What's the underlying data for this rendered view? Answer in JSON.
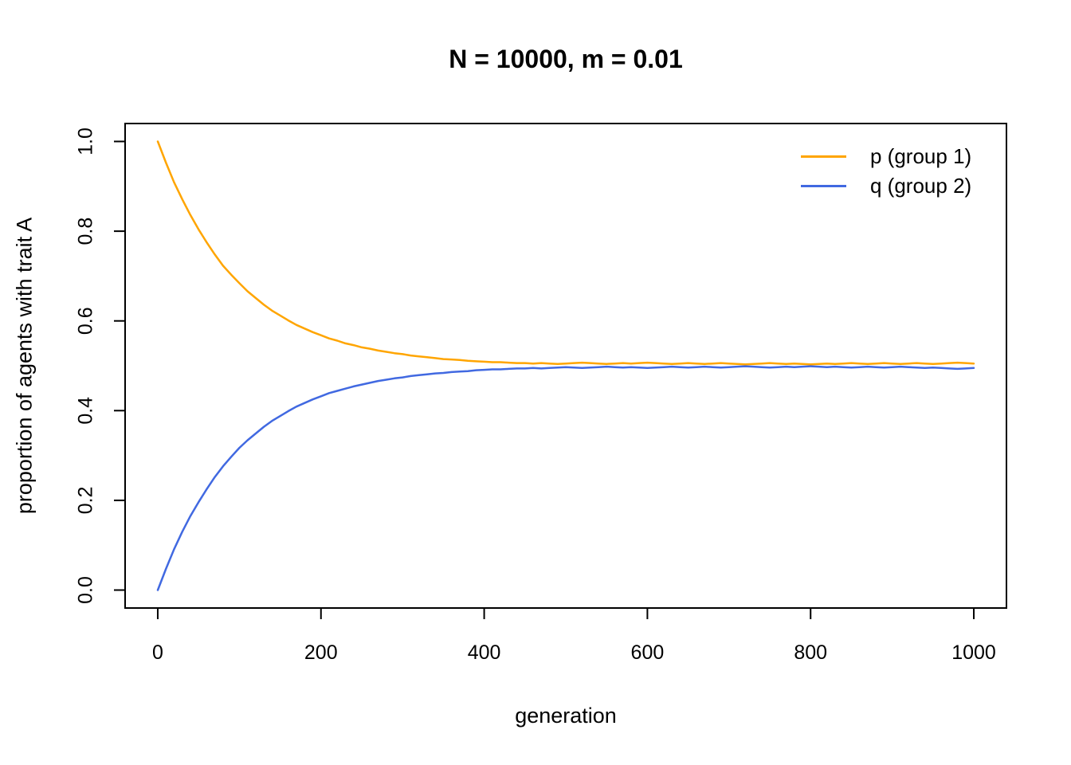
{
  "chart_data": {
    "type": "line",
    "title": "N = 10000, m = 0.01",
    "xlabel": "generation",
    "ylabel": "proportion of agents with trait A",
    "xlim": [
      0,
      1000
    ],
    "ylim": [
      0.0,
      1.0
    ],
    "xticks": [
      0,
      200,
      400,
      600,
      800,
      1000
    ],
    "xtick_labels": [
      "0",
      "200",
      "400",
      "600",
      "800",
      "1000"
    ],
    "yticks": [
      0.0,
      0.2,
      0.4,
      0.6,
      0.8,
      1.0
    ],
    "ytick_labels": [
      "0.0",
      "0.2",
      "0.4",
      "0.6",
      "0.8",
      "1.0"
    ],
    "grid": false,
    "legend_position": "top-right-inside",
    "axis_color": "#000000",
    "background_color": "#ffffff",
    "x": [
      0,
      10,
      20,
      30,
      40,
      50,
      60,
      70,
      80,
      90,
      100,
      110,
      120,
      130,
      140,
      150,
      160,
      170,
      180,
      190,
      200,
      210,
      220,
      230,
      240,
      250,
      260,
      270,
      280,
      290,
      300,
      310,
      320,
      330,
      340,
      350,
      360,
      370,
      380,
      390,
      400,
      410,
      420,
      430,
      440,
      450,
      460,
      470,
      480,
      490,
      500,
      510,
      520,
      530,
      540,
      550,
      560,
      570,
      580,
      590,
      600,
      610,
      620,
      630,
      640,
      650,
      660,
      670,
      680,
      690,
      700,
      710,
      720,
      730,
      740,
      750,
      760,
      770,
      780,
      790,
      800,
      810,
      820,
      830,
      840,
      850,
      860,
      870,
      880,
      890,
      900,
      910,
      920,
      930,
      940,
      950,
      960,
      970,
      980,
      990,
      1000
    ],
    "series": [
      {
        "name": "p (group 1)",
        "color": "#FFA500",
        "values": [
          1.0,
          0.953,
          0.909,
          0.871,
          0.836,
          0.804,
          0.775,
          0.748,
          0.723,
          0.703,
          0.684,
          0.666,
          0.651,
          0.636,
          0.623,
          0.612,
          0.601,
          0.591,
          0.583,
          0.575,
          0.568,
          0.561,
          0.556,
          0.55,
          0.546,
          0.541,
          0.538,
          0.534,
          0.531,
          0.528,
          0.526,
          0.523,
          0.521,
          0.519,
          0.517,
          0.515,
          0.514,
          0.513,
          0.511,
          0.51,
          0.509,
          0.508,
          0.508,
          0.507,
          0.506,
          0.506,
          0.505,
          0.506,
          0.505,
          0.504,
          0.505,
          0.506,
          0.507,
          0.506,
          0.505,
          0.504,
          0.505,
          0.506,
          0.505,
          0.506,
          0.507,
          0.506,
          0.505,
          0.504,
          0.505,
          0.506,
          0.505,
          0.504,
          0.505,
          0.506,
          0.505,
          0.504,
          0.503,
          0.504,
          0.505,
          0.506,
          0.505,
          0.504,
          0.505,
          0.504,
          0.503,
          0.504,
          0.505,
          0.504,
          0.505,
          0.506,
          0.505,
          0.504,
          0.505,
          0.506,
          0.505,
          0.504,
          0.505,
          0.506,
          0.505,
          0.504,
          0.505,
          0.506,
          0.507,
          0.506,
          0.505
        ]
      },
      {
        "name": "q (group 2)",
        "color": "#4169E1",
        "values": [
          0.0,
          0.047,
          0.091,
          0.13,
          0.165,
          0.196,
          0.225,
          0.252,
          0.276,
          0.297,
          0.317,
          0.334,
          0.349,
          0.364,
          0.377,
          0.388,
          0.399,
          0.409,
          0.417,
          0.425,
          0.432,
          0.439,
          0.444,
          0.449,
          0.454,
          0.458,
          0.462,
          0.466,
          0.469,
          0.472,
          0.474,
          0.477,
          0.479,
          0.481,
          0.483,
          0.484,
          0.486,
          0.487,
          0.488,
          0.49,
          0.491,
          0.492,
          0.492,
          0.493,
          0.494,
          0.494,
          0.495,
          0.494,
          0.495,
          0.496,
          0.497,
          0.496,
          0.495,
          0.496,
          0.497,
          0.498,
          0.497,
          0.496,
          0.497,
          0.496,
          0.495,
          0.496,
          0.497,
          0.498,
          0.497,
          0.496,
          0.497,
          0.498,
          0.497,
          0.496,
          0.497,
          0.498,
          0.499,
          0.498,
          0.497,
          0.496,
          0.497,
          0.498,
          0.497,
          0.498,
          0.499,
          0.498,
          0.497,
          0.498,
          0.497,
          0.496,
          0.497,
          0.498,
          0.497,
          0.496,
          0.497,
          0.498,
          0.497,
          0.496,
          0.495,
          0.496,
          0.495,
          0.494,
          0.493,
          0.494,
          0.495
        ]
      }
    ]
  }
}
